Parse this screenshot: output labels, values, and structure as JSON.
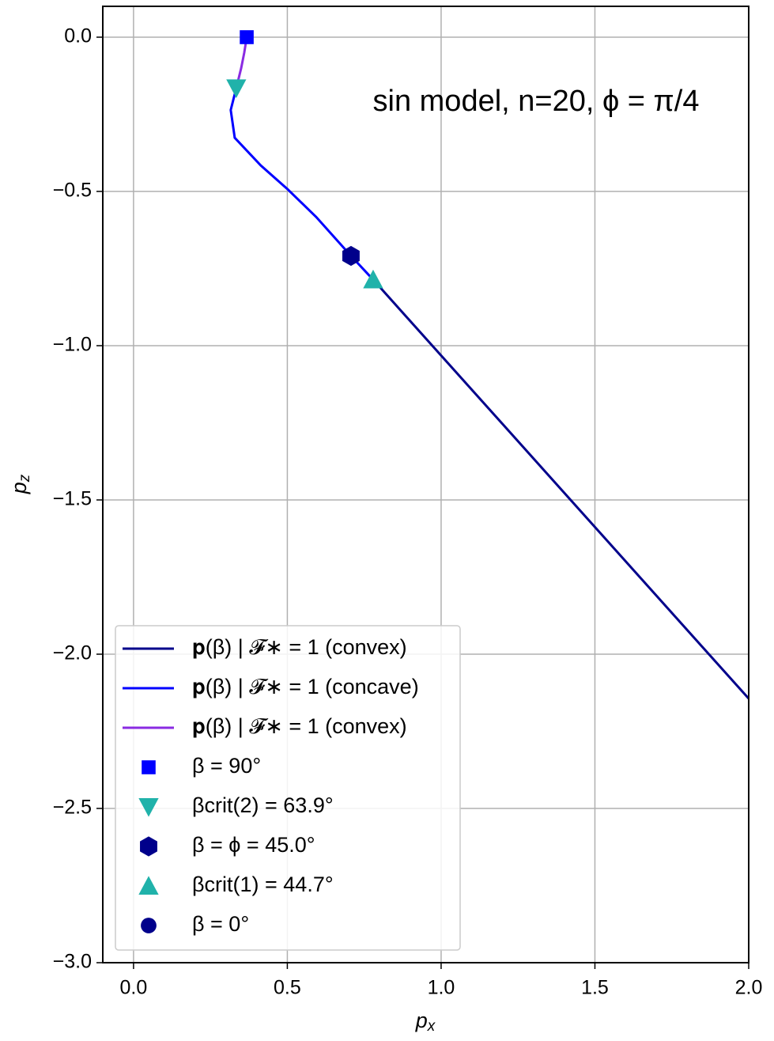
{
  "chart_data": {
    "type": "line",
    "annotation": "sin model, n=20, ϕ = π/4",
    "xlabel": {
      "base": "p",
      "sub": "x"
    },
    "ylabel": {
      "base": "p",
      "sub": "z"
    },
    "xlim": [
      -0.1,
      2.0
    ],
    "ylim": [
      -3.0,
      0.1
    ],
    "xticks": [
      {
        "value": 0,
        "label": "0.0"
      },
      {
        "value": 0.5,
        "label": "0.5"
      },
      {
        "value": 1,
        "label": "1.0"
      },
      {
        "value": 1.5,
        "label": "1.5"
      },
      {
        "value": 2,
        "label": "2.0"
      }
    ],
    "yticks": [
      {
        "value": 0,
        "label": "0.0"
      },
      {
        "value": -0.5,
        "label": "−0.5"
      },
      {
        "value": -1,
        "label": "−1.0"
      },
      {
        "value": -1.5,
        "label": "−1.5"
      },
      {
        "value": -2,
        "label": "−2.0"
      },
      {
        "value": -2.5,
        "label": "−2.5"
      },
      {
        "value": -3,
        "label": "−3.0"
      }
    ],
    "grid": true,
    "legend": "lower left",
    "series": [
      {
        "name": "𝐩(β) | 𝓕∗ = 1 (convex)",
        "color": "#00008b",
        "x": [
          0.779,
          2.0
        ],
        "y": [
          -0.786,
          -2.144
        ]
      },
      {
        "name": "𝐩(β) | 𝓕∗ = 1 (concave)",
        "color": "#0000ff",
        "x": [
          0.334,
          0.316,
          0.329,
          0.414,
          0.501,
          0.594,
          0.707,
          0.779
        ],
        "y": [
          -0.165,
          -0.236,
          -0.326,
          -0.416,
          -0.493,
          -0.583,
          -0.709,
          -0.786
        ]
      },
      {
        "name": "𝐩(β) | 𝓕∗ = 1 (convex)",
        "color": "#8a2be2",
        "x": [
          0.368,
          0.36,
          0.35,
          0.334
        ],
        "y": [
          0,
          -0.05,
          -0.1,
          -0.165
        ]
      }
    ],
    "markers": [
      {
        "name": "β = 90°",
        "color": "#0000ff",
        "marker": "square",
        "x": 0.368,
        "y": 0
      },
      {
        "name": "βcrit(2) = 63.9°",
        "color": "#20b2aa",
        "marker": "triangle-down",
        "x": 0.334,
        "y": -0.165
      },
      {
        "name": "β = ϕ = 45.0°",
        "color": "#00008b",
        "marker": "hexagon",
        "x": 0.707,
        "y": -0.709
      },
      {
        "name": "βcrit(1) = 44.7°",
        "color": "#20b2aa",
        "marker": "triangle-up",
        "x": 0.779,
        "y": -0.786
      },
      {
        "name": "β = 0°",
        "color": "#00008b",
        "marker": "circle"
      }
    ]
  }
}
